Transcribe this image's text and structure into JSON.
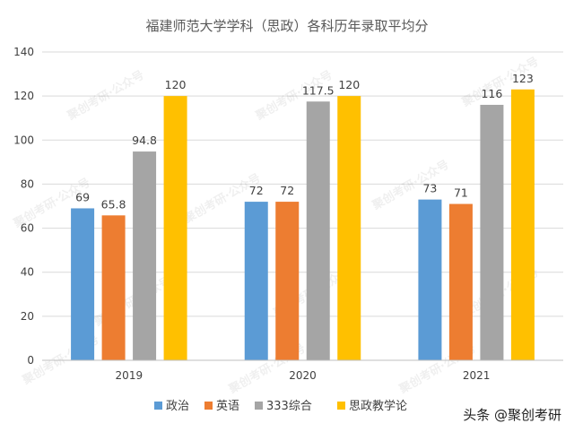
{
  "chart_data": {
    "type": "bar",
    "title": "福建师范大学学科（思政）各科历年录取平均分",
    "categories": [
      "2019",
      "2020",
      "2021"
    ],
    "series": [
      {
        "name": "政治",
        "color": "#5b9bd5",
        "values": [
          69,
          72,
          73
        ]
      },
      {
        "name": "英语",
        "color": "#ed7d31",
        "values": [
          65.8,
          72,
          71
        ]
      },
      {
        "name": "333综合",
        "color": "#a5a5a5",
        "values": [
          94.8,
          117.5,
          116
        ]
      },
      {
        "name": "思政教学论",
        "color": "#ffc000",
        "values": [
          120,
          120,
          123
        ]
      }
    ],
    "ylim": [
      0,
      140
    ],
    "yticks": [
      0,
      20,
      40,
      60,
      80,
      100,
      120,
      140
    ],
    "grid": true,
    "legend_position": "bottom"
  },
  "watermark_text": "聚创考研·公众号",
  "source_credit": "头条 @聚创考研"
}
